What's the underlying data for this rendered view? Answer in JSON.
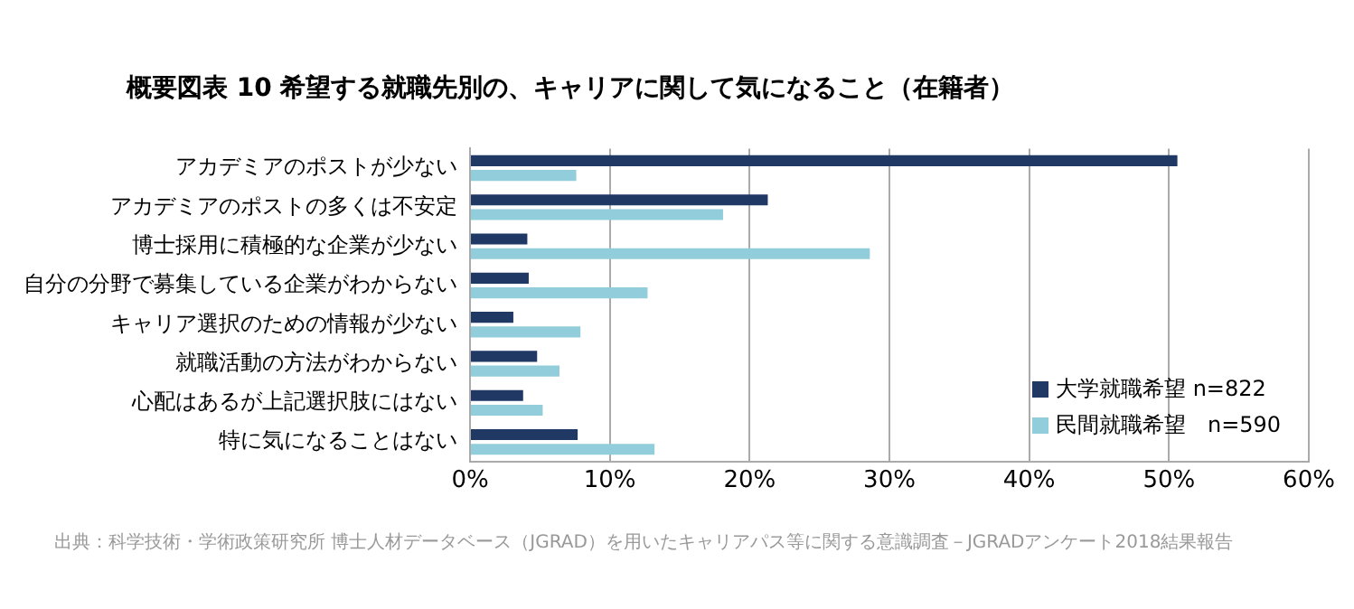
{
  "chart_data": {
    "type": "bar",
    "orientation": "horizontal",
    "title": "概要図表 10  希望する就職先別の、キャリアに関して気になること（在籍者）",
    "categories": [
      "アカデミアのポストが少ない",
      "アカデミアのポストの多くは不安定",
      "博士採用に積極的な企業が少ない",
      "自分の分野で募集している企業がわからない",
      "キャリア選択のための情報が少ない",
      "就職活動の方法がわからない",
      "心配はあるが上記選択肢にはない",
      "特に気になることはない"
    ],
    "series": [
      {
        "name": "大学就職希望 n=822",
        "color": "#1f3864",
        "values": [
          50.6,
          21.3,
          4.1,
          4.2,
          3.1,
          4.8,
          3.8,
          7.7
        ]
      },
      {
        "name": "民間就職希望　n=590",
        "color": "#92cddc",
        "values": [
          7.6,
          18.1,
          28.6,
          12.7,
          7.9,
          6.4,
          5.2,
          13.2
        ]
      }
    ],
    "xlim": [
      0,
      60
    ],
    "xticks": [
      {
        "value": 0,
        "label": "0%"
      },
      {
        "value": 10,
        "label": "10%"
      },
      {
        "value": 20,
        "label": "20%"
      },
      {
        "value": 30,
        "label": "30%"
      },
      {
        "value": 40,
        "label": "40%"
      },
      {
        "value": 50,
        "label": "50%"
      },
      {
        "value": 60,
        "label": "60%"
      }
    ],
    "grid": "x",
    "legend": "bottom right",
    "annotations": [
      "出典：科学技術・学術政策研究所 博士人材データベース（JGRAD）を用いたキャリアパス等に関する意識調査－JGRADアンケート2018結果報告"
    ]
  }
}
